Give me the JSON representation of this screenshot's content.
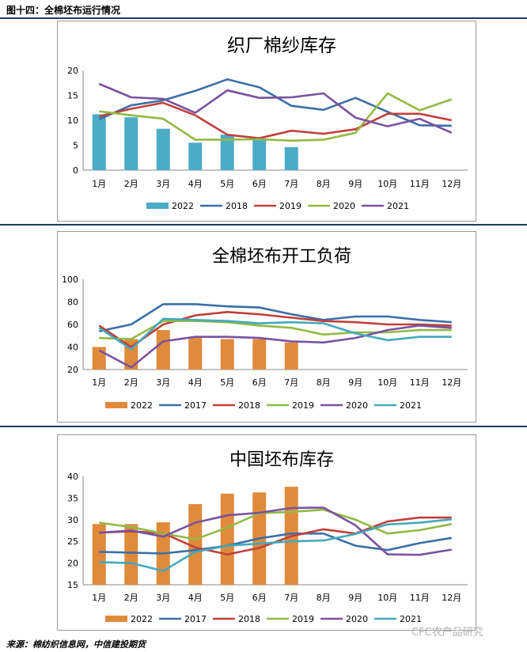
{
  "figure_title": "图十四：全棉坯布运行情况",
  "source": "来源：棉纺织信息网，中信建投期货",
  "watermark": "CFC农产品研究",
  "colors": {
    "2017": "#3b6fa8",
    "2018": "#c0403a",
    "2019": "#93b944",
    "2020": "#7a52a0",
    "2021": "#44a9bc",
    "2022_teal": "#4bacc6",
    "2022_orange": "#e08a3c"
  },
  "chart_data": [
    {
      "type": "bar+line",
      "title": "织厂棉纱库存",
      "categories": [
        "1月",
        "2月",
        "3月",
        "4月",
        "5月",
        "6月",
        "7月",
        "8月",
        "9月",
        "10月",
        "11月",
        "12月"
      ],
      "ylim": [
        0,
        20
      ],
      "yticks": [
        "0",
        "5",
        "10",
        "15",
        "20"
      ],
      "bar_series": {
        "name": "2022",
        "color": "#4bacc6",
        "values": [
          11.2,
          10.6,
          8.3,
          5.5,
          7.1,
          6.0,
          4.6
        ]
      },
      "series": [
        {
          "name": "2018",
          "color": "#3b6fa8",
          "values": [
            10.2,
            13.0,
            14.0,
            15.9,
            18.2,
            16.6,
            12.9,
            12.1,
            14.5,
            11.7,
            9.0,
            8.9
          ]
        },
        {
          "name": "2019",
          "color": "#c0403a",
          "values": [
            10.8,
            12.3,
            13.5,
            11.0,
            7.1,
            6.4,
            7.9,
            7.3,
            8.2,
            11.3,
            11.3,
            10.0
          ]
        },
        {
          "name": "2020",
          "color": "#93b944",
          "values": [
            11.8,
            11.0,
            10.3,
            6.1,
            6.1,
            6.2,
            5.9,
            6.1,
            7.5,
            15.4,
            12.0,
            14.2
          ]
        },
        {
          "name": "2021",
          "color": "#7a52a0",
          "values": [
            17.3,
            14.6,
            14.3,
            11.5,
            16.0,
            14.5,
            14.6,
            15.4,
            10.5,
            8.8,
            10.3,
            7.5
          ]
        }
      ]
    },
    {
      "type": "bar+line",
      "title": "全棉坯布开工负荷",
      "categories": [
        "1月",
        "2月",
        "3月",
        "4月",
        "5月",
        "6月",
        "7月",
        "8月",
        "9月",
        "10月",
        "11月",
        "12月"
      ],
      "ylim": [
        20,
        100
      ],
      "yticks": [
        "20",
        "40",
        "60",
        "80",
        "100"
      ],
      "bar_series": {
        "name": "2022",
        "color": "#e08a3c",
        "values": [
          40,
          47,
          55,
          48,
          47,
          47,
          44
        ]
      },
      "series": [
        {
          "name": "2017",
          "color": "#3b6fa8",
          "values": [
            54,
            60,
            78,
            78,
            76,
            75,
            69,
            64,
            67,
            67,
            64,
            62
          ]
        },
        {
          "name": "2018",
          "color": "#c0403a",
          "values": [
            59,
            40,
            60,
            68,
            71,
            69,
            66,
            63,
            62,
            60,
            60,
            59
          ]
        },
        {
          "name": "2019",
          "color": "#93b944",
          "values": [
            48,
            47,
            63,
            63,
            62,
            59,
            57,
            51,
            53,
            53,
            55,
            55
          ]
        },
        {
          "name": "2020",
          "color": "#7a52a0",
          "values": [
            37,
            22,
            45,
            49,
            49,
            48,
            45,
            44,
            48,
            55,
            59,
            57
          ]
        },
        {
          "name": "2021",
          "color": "#44a9bc",
          "values": [
            57,
            38,
            65,
            64,
            63,
            61,
            62,
            61,
            52,
            46,
            49,
            49
          ]
        }
      ]
    },
    {
      "type": "bar+line",
      "title": "中国坯布库存",
      "categories": [
        "1月",
        "2月",
        "3月",
        "4月",
        "5月",
        "6月",
        "7月",
        "8月",
        "9月",
        "10月",
        "11月",
        "12月"
      ],
      "ylim": [
        15,
        40
      ],
      "yticks": [
        "15",
        "20",
        "25",
        "30",
        "35",
        "40"
      ],
      "bar_series": {
        "name": "2022",
        "color": "#e08a3c",
        "values": [
          29.0,
          29.0,
          29.4,
          33.6,
          36.0,
          36.3,
          37.6
        ]
      },
      "series": [
        {
          "name": "2017",
          "color": "#3b6fa8",
          "values": [
            22.6,
            22.4,
            22.2,
            23.0,
            24.0,
            25.7,
            26.8,
            26.8,
            24.0,
            23.0,
            24.6,
            25.8
          ]
        },
        {
          "name": "2018",
          "color": "#c0403a",
          "values": [
            27.0,
            27.3,
            26.9,
            23.6,
            22.0,
            23.5,
            26.2,
            27.8,
            26.8,
            29.6,
            30.5,
            30.5
          ]
        },
        {
          "name": "2019",
          "color": "#93b944",
          "values": [
            29.3,
            28.3,
            26.8,
            25.5,
            28.2,
            31.5,
            31.8,
            32.3,
            30.0,
            26.8,
            27.6,
            29.0
          ]
        },
        {
          "name": "2020",
          "color": "#7a52a0",
          "values": [
            27.0,
            27.5,
            26.1,
            29.3,
            31.0,
            31.6,
            32.7,
            32.8,
            28.7,
            22.0,
            21.9,
            23.1
          ]
        },
        {
          "name": "2021",
          "color": "#44a9bc",
          "values": [
            20.2,
            20.0,
            18.2,
            22.6,
            24.0,
            24.5,
            25.0,
            25.2,
            26.7,
            28.9,
            29.3,
            30.1
          ]
        }
      ]
    }
  ]
}
